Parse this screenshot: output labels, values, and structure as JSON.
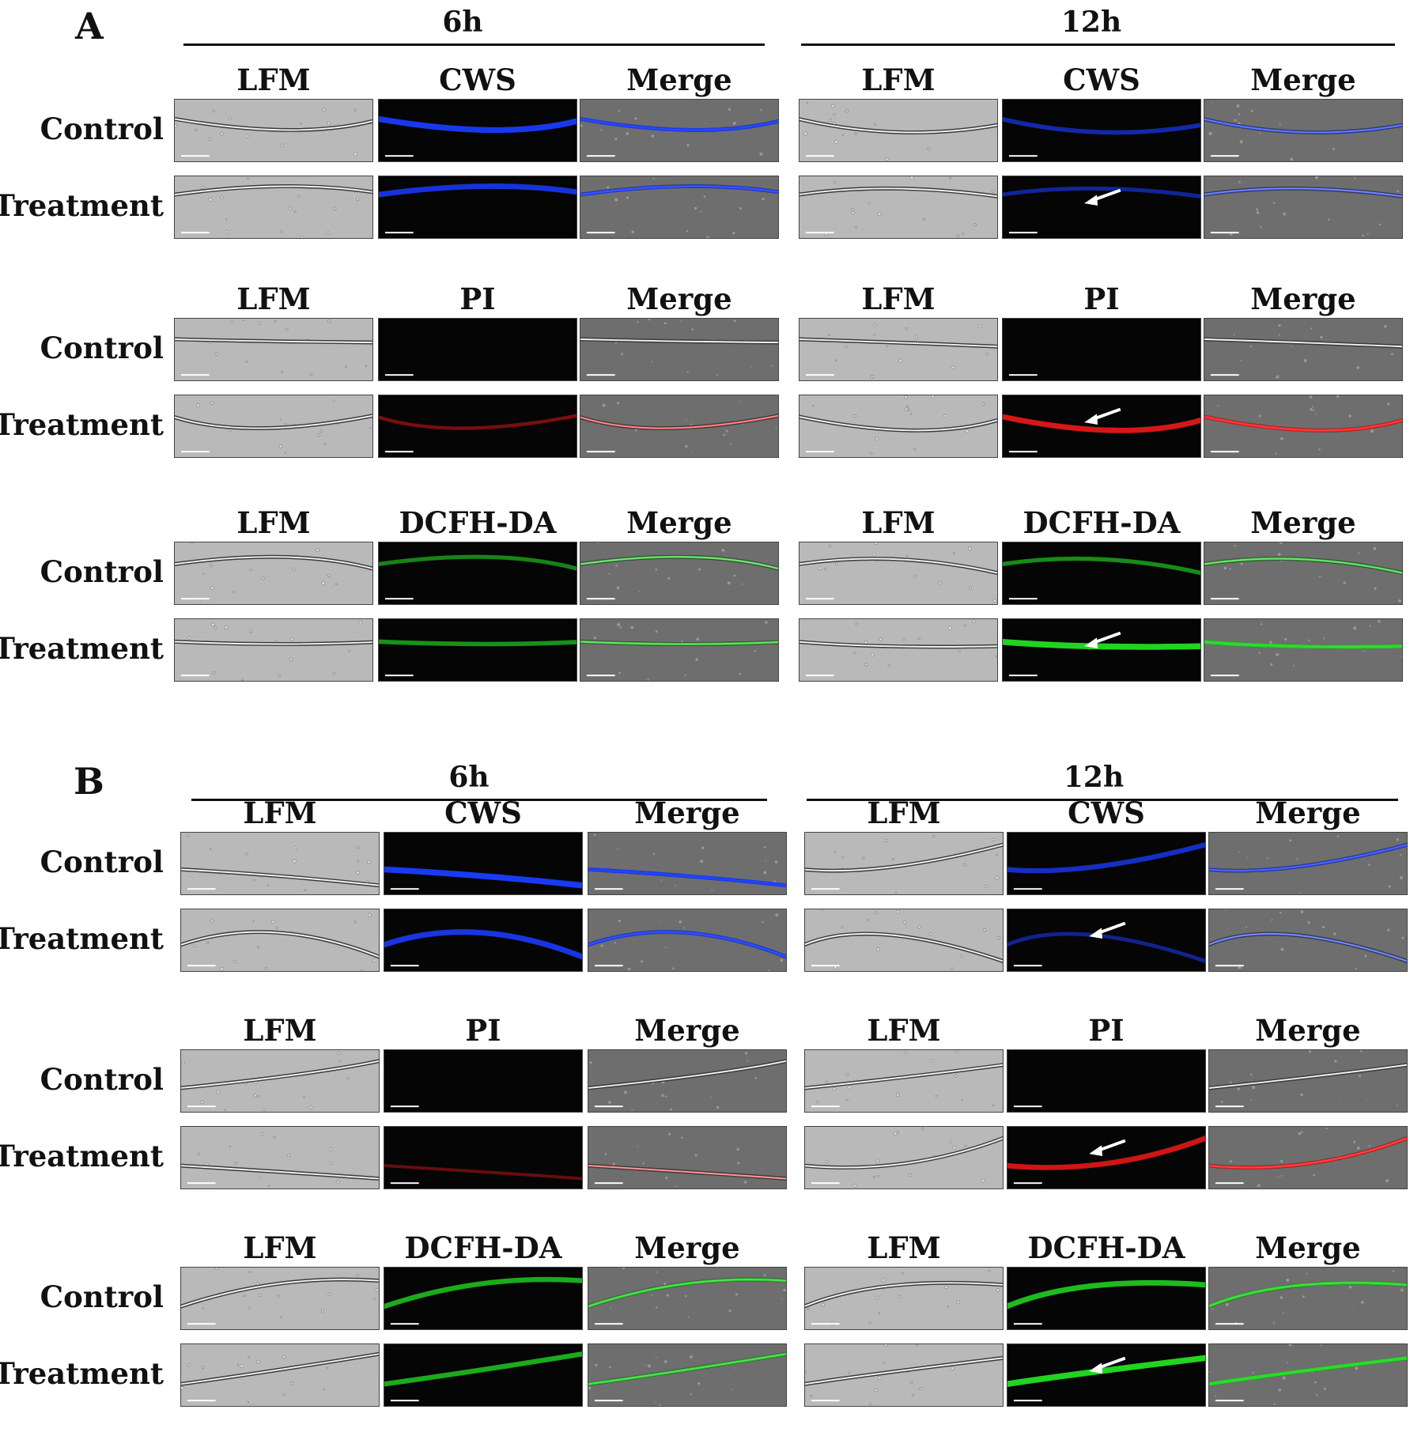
{
  "panels": [
    {
      "letter": "A",
      "timepoints": [
        "6h",
        "12h"
      ],
      "blocks": [
        {
          "columns": [
            "LFM",
            "CWS",
            "Merge"
          ],
          "stain_color": "#1a3cff",
          "rows": [
            {
              "label": "Control",
              "stain": [
                0.9,
                0.55
              ]
            },
            {
              "label": "Treatment",
              "stain": [
                0.8,
                0.45
              ]
            }
          ],
          "arrows": [
            {
              "time": 1,
              "row": 1,
              "col": 1
            }
          ]
        },
        {
          "columns": [
            "LFM",
            "PI",
            "Merge"
          ],
          "stain_color": "#ff1a1a",
          "rows": [
            {
              "label": "Control",
              "stain": [
                0.0,
                0.0
              ]
            },
            {
              "label": "Treatment",
              "stain": [
                0.3,
                0.8
              ]
            }
          ],
          "arrows": [
            {
              "time": 1,
              "row": 1,
              "col": 1
            }
          ]
        },
        {
          "columns": [
            "LFM",
            "DCFH-DA",
            "Merge"
          ],
          "stain_color": "#22dd22",
          "rows": [
            {
              "label": "Control",
              "stain": [
                0.45,
                0.5
              ]
            },
            {
              "label": "Treatment",
              "stain": [
                0.55,
                0.95
              ]
            }
          ],
          "arrows": [
            {
              "time": 1,
              "row": 1,
              "col": 1
            }
          ]
        }
      ]
    },
    {
      "letter": "B",
      "timepoints": [
        "6h",
        "12h"
      ],
      "blocks": [
        {
          "columns": [
            "LFM",
            "CWS",
            "Merge"
          ],
          "stain_color": "#1a3cff",
          "rows": [
            {
              "label": "Control",
              "stain": [
                0.95,
                0.7
              ]
            },
            {
              "label": "Treatment",
              "stain": [
                0.85,
                0.4
              ]
            }
          ],
          "arrows": [
            {
              "time": 1,
              "row": 1,
              "col": 1
            }
          ]
        },
        {
          "columns": [
            "LFM",
            "PI",
            "Merge"
          ],
          "stain_color": "#ff1a1a",
          "rows": [
            {
              "label": "Control",
              "stain": [
                0.0,
                0.0
              ]
            },
            {
              "label": "Treatment",
              "stain": [
                0.2,
                0.75
              ]
            }
          ],
          "arrows": [
            {
              "time": 1,
              "row": 1,
              "col": 1
            }
          ]
        },
        {
          "columns": [
            "LFM",
            "DCFH-DA",
            "Merge"
          ],
          "stain_color": "#22dd22",
          "rows": [
            {
              "label": "Control",
              "stain": [
                0.7,
                0.8
              ]
            },
            {
              "label": "Treatment",
              "stain": [
                0.7,
                0.95
              ]
            }
          ],
          "arrows": [
            {
              "time": 1,
              "row": 1,
              "col": 1
            }
          ]
        }
      ]
    }
  ]
}
